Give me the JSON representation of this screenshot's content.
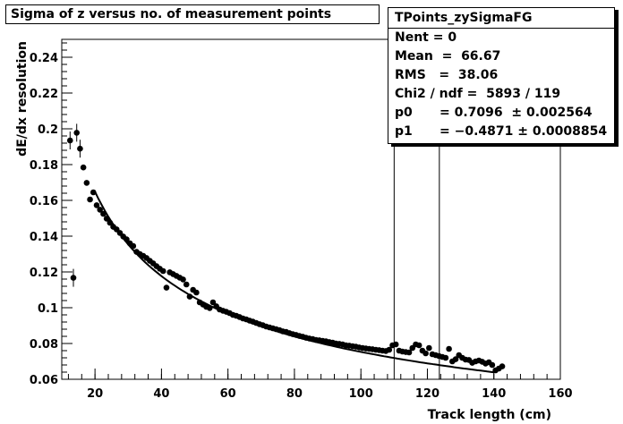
{
  "chart_data": {
    "type": "scatter",
    "title": "Sigma of z versus no. of measurement points",
    "xlabel": "Track length (cm)",
    "ylabel": "dE/dx resolution",
    "xlim": [
      10,
      160
    ],
    "ylim": [
      0.06,
      0.25
    ],
    "x_ticks": [
      20,
      40,
      60,
      80,
      100,
      120,
      140,
      160
    ],
    "y_ticks": [
      0.06,
      0.08,
      0.1,
      0.12,
      0.14,
      0.16,
      0.18,
      0.2,
      0.22,
      0.24
    ],
    "grid": false,
    "vertical_lines_x": [
      110,
      123.6
    ],
    "fit_function": "p0 * x^p1",
    "fit_range": [
      20,
      140
    ],
    "points": [
      [
        12.5,
        0.1935
      ],
      [
        13.5,
        0.1167
      ],
      [
        14.5,
        0.1978
      ],
      [
        15.5,
        0.1889
      ],
      [
        16.5,
        0.1784
      ],
      [
        17.5,
        0.1698
      ],
      [
        18.5,
        0.1605
      ],
      [
        19.5,
        0.1645
      ],
      [
        20.5,
        0.1573
      ],
      [
        21.5,
        0.1548
      ],
      [
        22.5,
        0.1525
      ],
      [
        23.5,
        0.1498
      ],
      [
        24.5,
        0.1475
      ],
      [
        25.5,
        0.1452
      ],
      [
        26.5,
        0.1438
      ],
      [
        27.5,
        0.1418
      ],
      [
        28.5,
        0.1398
      ],
      [
        29.5,
        0.1382
      ],
      [
        30.5,
        0.136
      ],
      [
        31.5,
        0.1345
      ],
      [
        32.5,
        0.1312
      ],
      [
        33.5,
        0.13
      ],
      [
        34.5,
        0.129
      ],
      [
        35.5,
        0.1278
      ],
      [
        36.5,
        0.1262
      ],
      [
        37.5,
        0.1248
      ],
      [
        38.5,
        0.1232
      ],
      [
        39.5,
        0.1218
      ],
      [
        40.5,
        0.1205
      ],
      [
        41.5,
        0.1112
      ],
      [
        42.5,
        0.1198
      ],
      [
        43.5,
        0.1188
      ],
      [
        44.5,
        0.1178
      ],
      [
        45.5,
        0.1168
      ],
      [
        46.5,
        0.1158
      ],
      [
        47.5,
        0.113
      ],
      [
        48.5,
        0.1062
      ],
      [
        49.5,
        0.11
      ],
      [
        50.5,
        0.1085
      ],
      [
        51.5,
        0.103
      ],
      [
        52.5,
        0.1018
      ],
      [
        53.5,
        0.1005
      ],
      [
        54.5,
        0.0998
      ],
      [
        55.5,
        0.103
      ],
      [
        56.5,
        0.1008
      ],
      [
        57.5,
        0.099
      ],
      [
        58.5,
        0.0983
      ],
      [
        59.5,
        0.0977
      ],
      [
        60.5,
        0.097
      ],
      [
        61.5,
        0.096
      ],
      [
        62.5,
        0.0955
      ],
      [
        63.5,
        0.0948
      ],
      [
        64.5,
        0.094
      ],
      [
        65.5,
        0.0935
      ],
      [
        66.5,
        0.0928
      ],
      [
        67.5,
        0.0922
      ],
      [
        68.5,
        0.0915
      ],
      [
        69.5,
        0.0908
      ],
      [
        70.5,
        0.0902
      ],
      [
        71.5,
        0.0895
      ],
      [
        72.5,
        0.089
      ],
      [
        73.5,
        0.0885
      ],
      [
        74.5,
        0.088
      ],
      [
        75.5,
        0.0875
      ],
      [
        76.5,
        0.0868
      ],
      [
        77.5,
        0.0865
      ],
      [
        78.5,
        0.0858
      ],
      [
        79.5,
        0.0852
      ],
      [
        80.5,
        0.0848
      ],
      [
        81.5,
        0.0842
      ],
      [
        82.5,
        0.0838
      ],
      [
        83.5,
        0.0832
      ],
      [
        84.5,
        0.0828
      ],
      [
        85.5,
        0.0825
      ],
      [
        86.5,
        0.082
      ],
      [
        87.5,
        0.0818
      ],
      [
        88.5,
        0.0815
      ],
      [
        89.5,
        0.0812
      ],
      [
        90.5,
        0.0808
      ],
      [
        91.5,
        0.0805
      ],
      [
        92.5,
        0.08
      ],
      [
        93.5,
        0.0798
      ],
      [
        94.5,
        0.0795
      ],
      [
        95.5,
        0.079
      ],
      [
        96.5,
        0.0788
      ],
      [
        97.5,
        0.0785
      ],
      [
        98.5,
        0.0782
      ],
      [
        99.5,
        0.0778
      ],
      [
        100.5,
        0.0775
      ],
      [
        101.5,
        0.0772
      ],
      [
        102.5,
        0.077
      ],
      [
        103.5,
        0.0768
      ],
      [
        104.5,
        0.0765
      ],
      [
        105.5,
        0.0763
      ],
      [
        106.5,
        0.076
      ],
      [
        107.5,
        0.0758
      ],
      [
        108.5,
        0.0765
      ],
      [
        109.5,
        0.079
      ],
      [
        110.5,
        0.0795
      ],
      [
        111.5,
        0.076
      ],
      [
        112.5,
        0.0755
      ],
      [
        113.5,
        0.0752
      ],
      [
        114.5,
        0.075
      ],
      [
        115.5,
        0.0775
      ],
      [
        116.5,
        0.0795
      ],
      [
        117.5,
        0.079
      ],
      [
        118.5,
        0.076
      ],
      [
        119.5,
        0.0745
      ],
      [
        120.5,
        0.0775
      ],
      [
        121.5,
        0.074
      ],
      [
        122.5,
        0.0735
      ],
      [
        123.5,
        0.073
      ],
      [
        124.5,
        0.0725
      ],
      [
        125.5,
        0.072
      ],
      [
        126.5,
        0.077
      ],
      [
        127.5,
        0.07
      ],
      [
        128.5,
        0.0712
      ],
      [
        129.5,
        0.0735
      ],
      [
        130.5,
        0.072
      ],
      [
        131.5,
        0.071
      ],
      [
        132.5,
        0.0708
      ],
      [
        133.5,
        0.0692
      ],
      [
        134.5,
        0.07
      ],
      [
        135.5,
        0.0705
      ],
      [
        136.5,
        0.0698
      ],
      [
        137.5,
        0.0688
      ],
      [
        138.5,
        0.0695
      ],
      [
        139.5,
        0.068
      ],
      [
        140.5,
        0.065
      ],
      [
        141.5,
        0.066
      ],
      [
        142.5,
        0.0672
      ]
    ]
  },
  "stats": {
    "name": "TPoints_zySigmaFG",
    "rows": [
      {
        "key": "Nent = 0",
        "value": ""
      },
      {
        "key": "Mean  =  66.67",
        "value": ""
      },
      {
        "key": "RMS   =  38.06",
        "value": ""
      },
      {
        "key": "Chi2 / ndf =  5893 / 119",
        "value": ""
      },
      {
        "key": "p0",
        "value": "= 0.7096  ± 0.002564"
      },
      {
        "key": "p1",
        "value": "= −0.4871 ± 0.0008854"
      }
    ]
  },
  "fit": {
    "p0": 0.7096,
    "p1": -0.4871
  }
}
